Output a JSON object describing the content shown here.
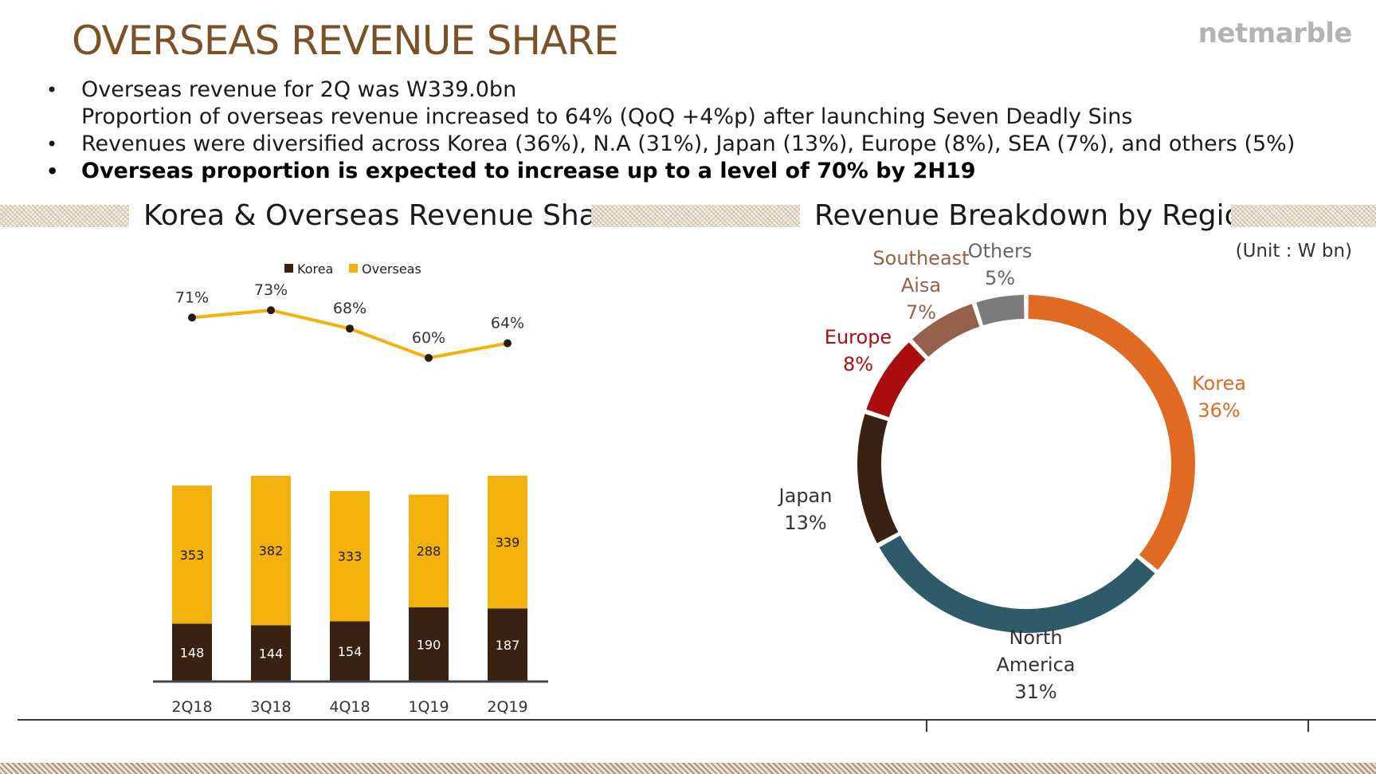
{
  "page": {
    "title": "OVERSEAS REVENUE SHARE",
    "logo": "netmarble",
    "bullets": [
      {
        "line1": "Overseas revenue for 2Q was W339.0bn",
        "line2": "Proportion of overseas revenue increased to 64% (QoQ +4%p) after launching Seven Deadly Sins",
        "bold": false
      },
      {
        "line1": "Revenues were diversified across Korea (36%), N.A (31%), Japan (13%), Europe (8%), SEA (7%), and others (5%)",
        "line2": "",
        "bold": false
      },
      {
        "line1": "Overseas proportion is expected to increase up to a level of 70% by 2H19",
        "line2": "",
        "bold": true
      }
    ],
    "bullet_symbol": "•",
    "left_section_title": "Korea & Overseas Revenue Share",
    "right_section_title": "Revenue Breakdown by Region",
    "unit_note": "(Unit : W bn)"
  },
  "colors": {
    "title_brown": "#7b5128",
    "korea": "#3a2212",
    "overseas": "#f2b10c",
    "line": "#f2b10c",
    "donut_korea": "#e06a22",
    "donut_north_america": "#2e5a6a",
    "donut_japan": "#3a2212",
    "donut_europe": "#aa0d0d",
    "donut_sea": "#95604c",
    "donut_others": "#7b7b7b"
  },
  "chart_data": [
    {
      "type": "bar",
      "stacked": true,
      "categories": [
        "2Q18",
        "3Q18",
        "4Q18",
        "1Q19",
        "2Q19"
      ],
      "series": [
        {
          "name": "Korea",
          "values": [
            148,
            144,
            154,
            190,
            187
          ],
          "color": "#3a2212"
        },
        {
          "name": "Overseas",
          "values": [
            353,
            382,
            333,
            288,
            339
          ],
          "color": "#f2b10c"
        }
      ],
      "overlay_line": {
        "values": [
          71,
          73,
          68,
          60,
          64
        ],
        "labels": [
          "71%",
          "73%",
          "68%",
          "60%",
          "64%"
        ],
        "ylim": [
          55,
          75
        ]
      },
      "ylim": [
        0,
        540
      ],
      "legend_position": "top",
      "grid": false
    },
    {
      "type": "pie",
      "style": "donut",
      "slices": [
        {
          "name": "Korea",
          "pct": "36%",
          "value": 36,
          "color": "#e06a22"
        },
        {
          "name": "North America",
          "pct": "31%",
          "value": 31,
          "color": "#2e5a6a"
        },
        {
          "name": "Japan",
          "pct": "13%",
          "value": 13,
          "color": "#3a2212"
        },
        {
          "name": "Europe",
          "pct": "8%",
          "value": 8,
          "color": "#aa0d0d"
        },
        {
          "name": "Southeast Aisa",
          "pct": "7%",
          "value": 7,
          "color": "#95604c"
        },
        {
          "name": "Others",
          "pct": "5%",
          "value": 5,
          "color": "#7b7b7b"
        }
      ]
    }
  ]
}
